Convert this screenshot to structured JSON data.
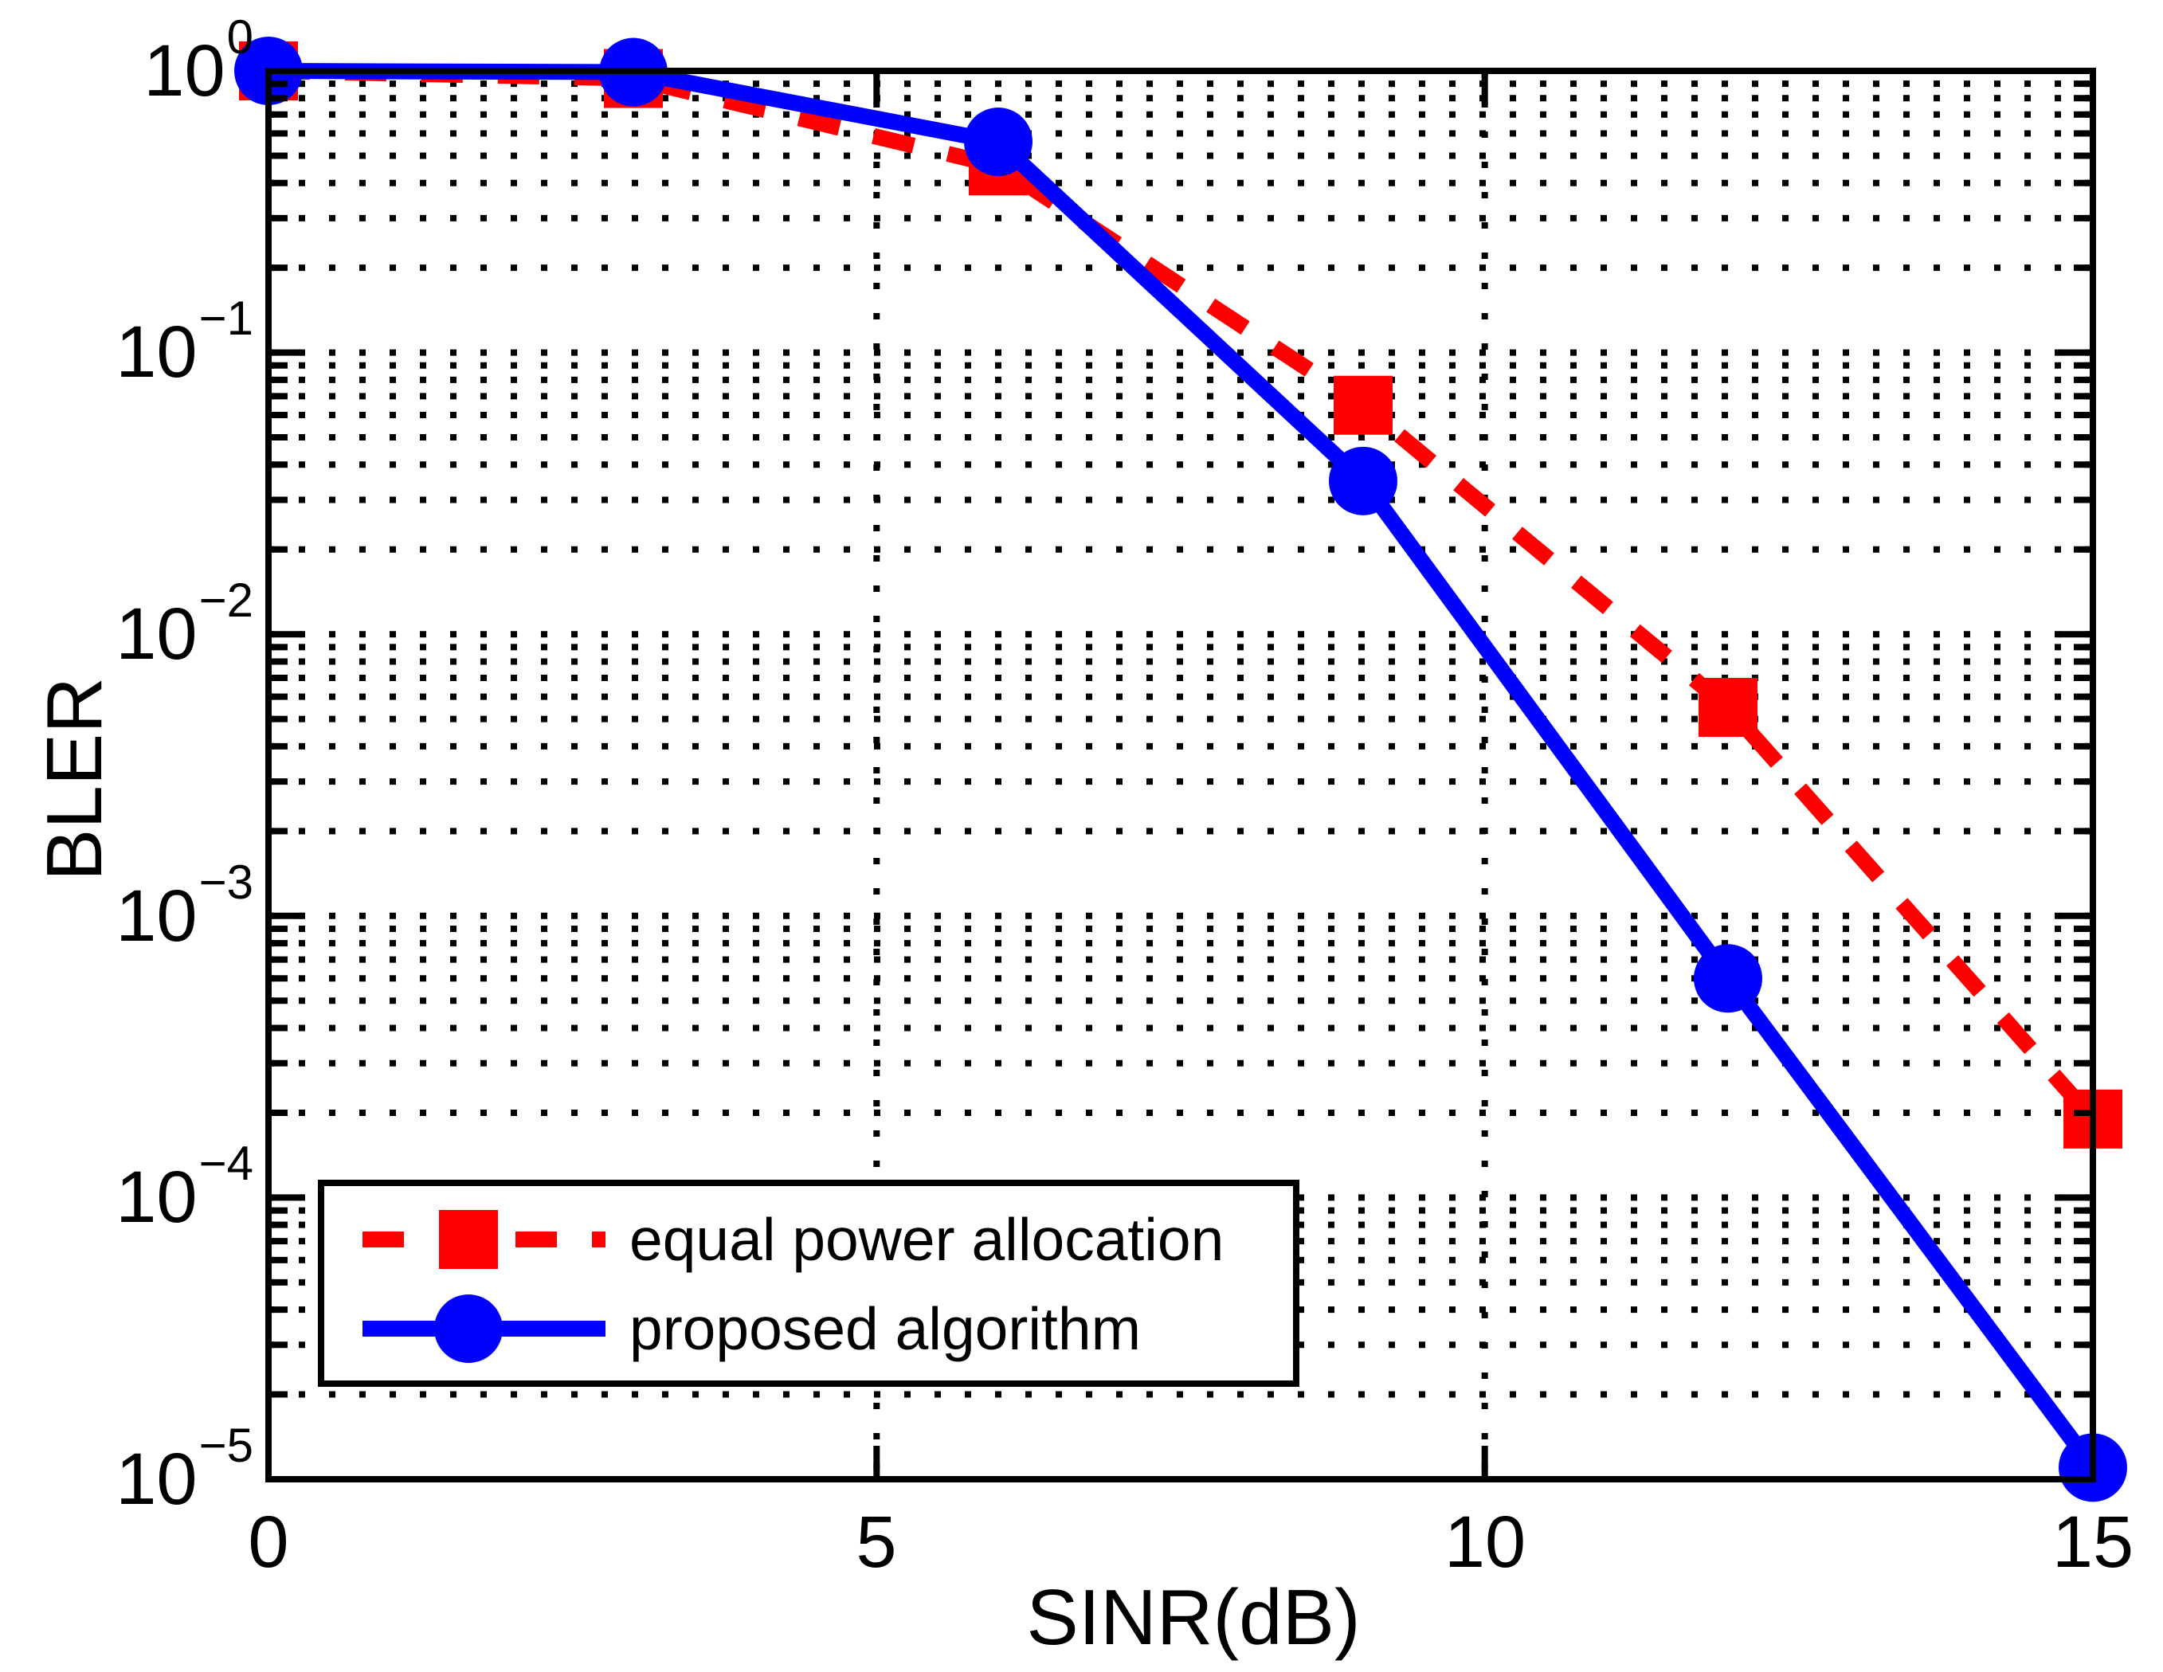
{
  "chart_data": {
    "type": "line",
    "title": "",
    "xlabel": "SINR(dB)",
    "ylabel": "BLER",
    "x_scale": "linear",
    "y_scale": "log",
    "xlim": [
      0,
      15
    ],
    "ylim": [
      1e-05,
      1
    ],
    "x_ticks": [
      0,
      5,
      10,
      15
    ],
    "x_tick_labels": [
      "0",
      "5",
      "10",
      "15"
    ],
    "y_tick_base": "10",
    "y_tick_exponents": [
      "0",
      "−1",
      "−2",
      "−3",
      "−4",
      "−5"
    ],
    "grid": {
      "style": "dotted",
      "color": "#000000",
      "horizontal": "log major and minor lines",
      "vertical_at": [
        5,
        10
      ]
    },
    "x": [
      0,
      3,
      6,
      9,
      12,
      15
    ],
    "series": [
      {
        "name": "equal power allocation",
        "color": "#ff0000",
        "line_style": "dashed",
        "marker": "square",
        "values": [
          1.0,
          0.94,
          0.46,
          0.065,
          0.0055,
          0.00019
        ]
      },
      {
        "name": "proposed algorithm",
        "color": "#0000ff",
        "line_style": "solid",
        "marker": "circle",
        "values": [
          1.0,
          0.99,
          0.56,
          0.035,
          0.0006,
          1.1e-05
        ]
      }
    ],
    "legend": {
      "position": "bottom-left",
      "entries": [
        "equal power allocation",
        "proposed algorithm"
      ]
    },
    "axes_color": "#000000"
  }
}
